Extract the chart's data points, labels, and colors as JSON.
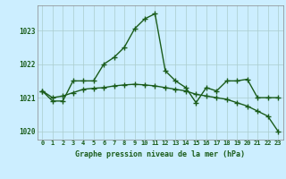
{
  "title": "Graphe pression niveau de la mer (hPa)",
  "background_color": "#cceeff",
  "grid_color": "#aacccc",
  "line_color": "#1a5c1a",
  "x_labels": [
    "0",
    "1",
    "2",
    "3",
    "4",
    "5",
    "6",
    "7",
    "8",
    "9",
    "10",
    "11",
    "12",
    "13",
    "14",
    "15",
    "16",
    "17",
    "18",
    "19",
    "20",
    "21",
    "22",
    "23"
  ],
  "x_values": [
    0,
    1,
    2,
    3,
    4,
    5,
    6,
    7,
    8,
    9,
    10,
    11,
    12,
    13,
    14,
    15,
    16,
    17,
    18,
    19,
    20,
    21,
    22,
    23
  ],
  "line1_y": [
    1021.2,
    1020.9,
    1020.9,
    1021.5,
    1021.5,
    1021.5,
    1022.0,
    1022.2,
    1022.5,
    1023.05,
    1023.35,
    1023.5,
    1021.8,
    1021.5,
    1021.3,
    1020.85,
    1021.3,
    1021.2,
    1021.5,
    1021.5,
    1021.55,
    1021.0,
    1021.0,
    1021.0
  ],
  "line2_y": [
    1021.2,
    1021.0,
    1021.05,
    1021.15,
    1021.25,
    1021.28,
    1021.3,
    1021.35,
    1021.38,
    1021.4,
    1021.38,
    1021.35,
    1021.3,
    1021.25,
    1021.2,
    1021.1,
    1021.05,
    1021.0,
    1020.95,
    1020.85,
    1020.75,
    1020.6,
    1020.45,
    1020.0
  ],
  "ylim": [
    1019.75,
    1023.75
  ],
  "yticks": [
    1020,
    1021,
    1022,
    1023
  ],
  "marker": "+",
  "markersize": 4,
  "linewidth": 1.0
}
